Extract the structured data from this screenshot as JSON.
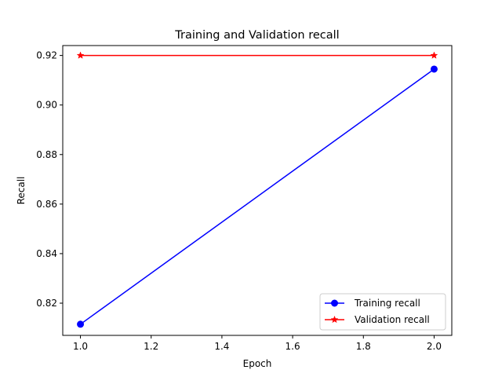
{
  "chart_data": {
    "type": "line",
    "title": "Training and Validation recall",
    "xlabel": "Epoch",
    "ylabel": "Recall",
    "xlim": [
      0.95,
      2.05
    ],
    "ylim": [
      0.807,
      0.924
    ],
    "xticks": [
      1.0,
      1.2,
      1.4,
      1.6,
      1.8,
      2.0
    ],
    "xtick_labels": [
      "1.0",
      "1.2",
      "1.4",
      "1.6",
      "1.8",
      "2.0"
    ],
    "yticks": [
      0.82,
      0.84,
      0.86,
      0.88,
      0.9,
      0.92
    ],
    "ytick_labels": [
      "0.82",
      "0.84",
      "0.86",
      "0.88",
      "0.90",
      "0.92"
    ],
    "grid": false,
    "legend_position": "lower-right",
    "series": [
      {
        "name": "Training recall",
        "color": "#0000ff",
        "marker": "circle",
        "x": [
          1.0,
          2.0
        ],
        "y": [
          0.8115,
          0.9145
        ]
      },
      {
        "name": "Validation recall",
        "color": "#ff0000",
        "marker": "star",
        "x": [
          1.0,
          2.0
        ],
        "y": [
          0.92,
          0.92
        ]
      }
    ]
  }
}
